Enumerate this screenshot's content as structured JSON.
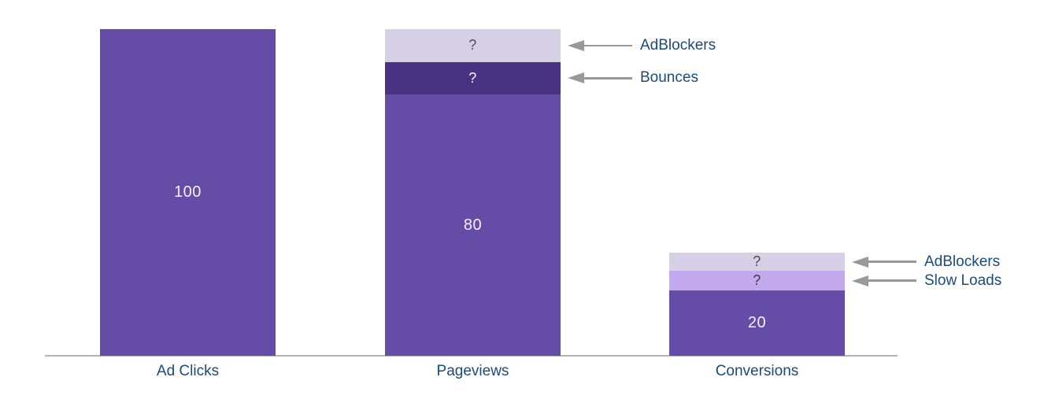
{
  "chart_data": {
    "type": "bar",
    "subtype": "stacked-funnel-with-annotations",
    "title": "",
    "categories": [
      "Ad Clicks",
      "Pageviews",
      "Conversions"
    ],
    "ylim": [
      0,
      100
    ],
    "grid": "off",
    "legend_position": "none",
    "bars": [
      {
        "category": "Ad Clicks",
        "total": 100,
        "segments": [
          {
            "name": "ad-clicks-total",
            "value": 100,
            "label": "100",
            "color": "#654da7",
            "label_color": "#f4f1f9"
          }
        ]
      },
      {
        "category": "Pageviews",
        "total": 100,
        "segments": [
          {
            "name": "pageviews-base",
            "value": 80,
            "label": "80",
            "color": "#654da7",
            "label_color": "#f4f1f9"
          },
          {
            "name": "pageviews-bounces",
            "value": 10,
            "label": "?",
            "color": "#473381",
            "label_color": "#f4f1f9",
            "annotation": "Bounces"
          },
          {
            "name": "pageviews-adblockers",
            "value": 10,
            "label": "?",
            "color": "#d5d0e6",
            "label_color": "#4c4c52",
            "annotation": "AdBlockers"
          }
        ]
      },
      {
        "category": "Conversions",
        "total": 31.5,
        "segments": [
          {
            "name": "conversions-base",
            "value": 20,
            "label": "20",
            "color": "#654da7",
            "label_color": "#f4f1f9"
          },
          {
            "name": "conversions-slow-loads",
            "value": 6,
            "label": "?",
            "color": "#c3a9ee",
            "label_color": "#3c3c44",
            "annotation": "Slow Loads"
          },
          {
            "name": "conversions-adblockers",
            "value": 5.5,
            "label": "?",
            "color": "#d5d0e6",
            "label_color": "#4c4c52",
            "annotation": "AdBlockers"
          }
        ]
      }
    ],
    "annotations": [
      {
        "target": "pageviews-adblockers",
        "label": "AdBlockers"
      },
      {
        "target": "pageviews-bounces",
        "label": "Bounces"
      },
      {
        "target": "conversions-adblockers",
        "label": "AdBlockers"
      },
      {
        "target": "conversions-slow-loads",
        "label": "Slow Loads"
      }
    ],
    "colors": {
      "bar_primary": "#654da7",
      "bar_dark_purple": "#473381",
      "bar_lavender": "#d5d0e6",
      "bar_light_purple": "#c3a9ee",
      "category_text": "#1b4a7a",
      "annotation_text": "#1b4a7a",
      "arrow": "#999999",
      "axis_line": "#b3b2ba",
      "background": "#ffffff"
    }
  }
}
